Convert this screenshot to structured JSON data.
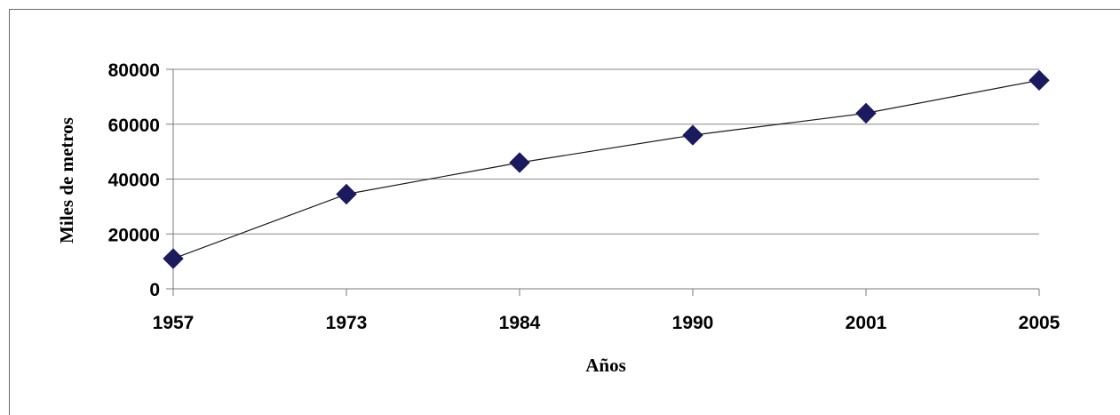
{
  "chart_data": {
    "type": "line",
    "title": "",
    "xlabel": "Años",
    "ylabel": "Miles de metros",
    "categories": [
      "1957",
      "1973",
      "1984",
      "1990",
      "2001",
      "2005"
    ],
    "series": [
      {
        "values": [
          11000,
          34500,
          46000,
          56000,
          64000,
          76000
        ]
      }
    ],
    "ylim": [
      0,
      80000
    ],
    "yticks": [
      "0",
      "20000",
      "40000",
      "60000",
      "80000"
    ],
    "grid": true,
    "legend": "none",
    "colors": {
      "line": "#1a1a1a",
      "marker": "#1c1a5e",
      "grid": "#8a8a8a",
      "axis": "#7a7a7a"
    }
  }
}
